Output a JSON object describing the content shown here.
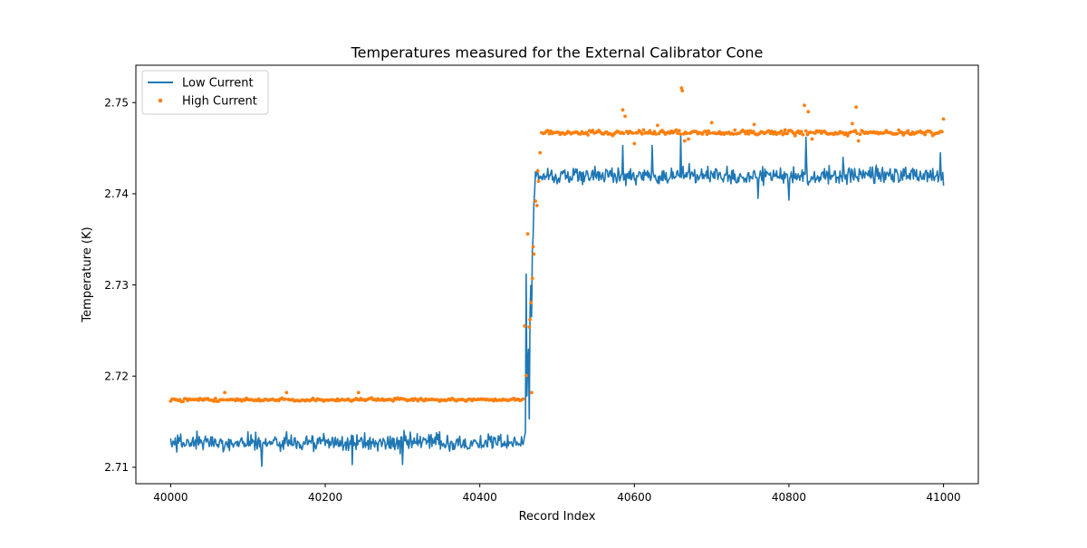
{
  "chart_data": {
    "type": "line",
    "title": "Temperatures measured for the External Calibrator Cone",
    "xlabel": "Record Index",
    "ylabel": "Temperature (K)",
    "xlim": [
      39955,
      41045
    ],
    "ylim": [
      2.7082,
      2.7541
    ],
    "x_ticks": [
      40000,
      40200,
      40400,
      40600,
      40800,
      41000
    ],
    "y_ticks": [
      2.71,
      2.72,
      2.73,
      2.74,
      2.75
    ],
    "x_tick_labels": [
      "40000",
      "40200",
      "40400",
      "40600",
      "40800",
      "41000"
    ],
    "y_tick_labels": [
      "2.71",
      "2.72",
      "2.73",
      "2.74",
      "2.75"
    ],
    "grid": false,
    "legend": {
      "placement": "top-left"
    },
    "x_range": [
      40000,
      41000
    ],
    "series": [
      {
        "name": "Low Current",
        "style": "line",
        "color": "#1f77b4",
        "levels": {
          "before": 2.7127,
          "after": 2.742
        },
        "spikes": [
          [
            40100,
            2.7139
          ],
          [
            40118,
            2.7101
          ],
          [
            40150,
            2.7139
          ],
          [
            40235,
            2.7103
          ],
          [
            40300,
            2.7103
          ],
          [
            40348,
            2.7139
          ],
          [
            40456,
            2.7125
          ],
          [
            40460,
            2.7312
          ],
          [
            40464,
            2.7153
          ],
          [
            40467,
            2.7265
          ],
          [
            40470,
            2.739
          ],
          [
            40585,
            2.7453
          ],
          [
            40623,
            2.7453
          ],
          [
            40660,
            2.7465
          ],
          [
            40720,
            2.743
          ],
          [
            40760,
            2.7395
          ],
          [
            40800,
            2.7393
          ],
          [
            40822,
            2.7462
          ],
          [
            40870,
            2.744
          ],
          [
            40996,
            2.7445
          ]
        ]
      },
      {
        "name": "High Current",
        "style": "scatter",
        "color": "#ff7f0e",
        "levels": {
          "before": 2.7174,
          "after": 2.7467
        },
        "spikes": [
          [
            40070,
            2.7182
          ],
          [
            40150,
            2.7182
          ],
          [
            40243,
            2.7182
          ],
          [
            40458,
            2.7255
          ],
          [
            40462,
            2.7356
          ],
          [
            40465,
            2.7262
          ],
          [
            40467,
            2.7182
          ],
          [
            40469,
            2.7342
          ],
          [
            40472,
            2.7392
          ],
          [
            40475,
            2.7425
          ],
          [
            40478,
            2.7445
          ],
          [
            40585,
            2.7492
          ],
          [
            40588,
            2.7485
          ],
          [
            40600,
            2.7455
          ],
          [
            40630,
            2.7475
          ],
          [
            40661,
            2.7516
          ],
          [
            40662,
            2.7513
          ],
          [
            40665,
            2.7458
          ],
          [
            40670,
            2.746
          ],
          [
            40700,
            2.7478
          ],
          [
            40755,
            2.7476
          ],
          [
            40795,
            2.747
          ],
          [
            40820,
            2.7497
          ],
          [
            40825,
            2.749
          ],
          [
            40830,
            2.746
          ],
          [
            40882,
            2.7477
          ],
          [
            40887,
            2.7495
          ],
          [
            40890,
            2.7458
          ],
          [
            41000,
            2.7482
          ]
        ]
      }
    ]
  }
}
